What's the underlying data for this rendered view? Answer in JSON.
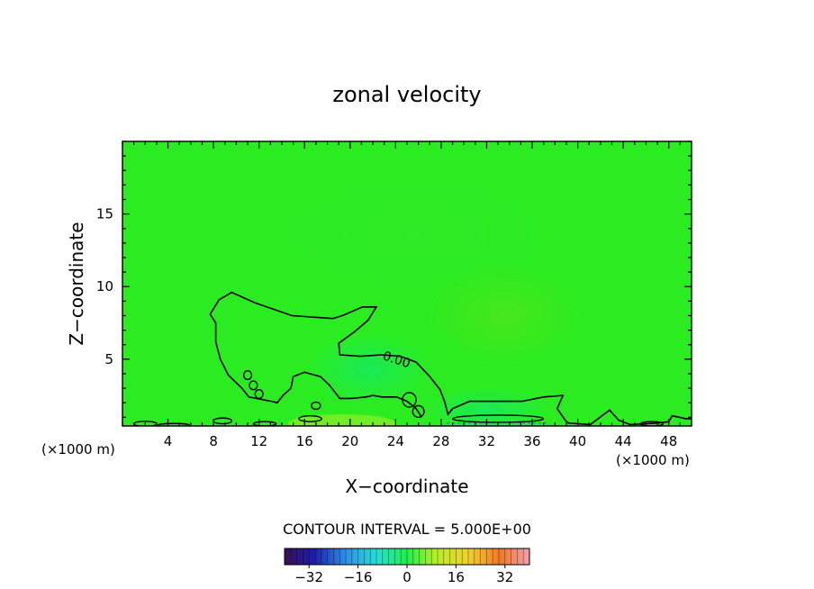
{
  "chart_data": {
    "type": "heatmap",
    "title": "zonal velocity",
    "xlabel": "X−coordinate",
    "ylabel": "Z−coordinate",
    "x_unit_left": "(×1000 m)",
    "x_unit_right": "(×1000 m)",
    "xlim": [
      0,
      50
    ],
    "ylim": [
      0.4,
      20
    ],
    "x_ticks": [
      4,
      8,
      12,
      16,
      20,
      24,
      28,
      32,
      36,
      40,
      44,
      48
    ],
    "y_ticks": [
      5,
      10,
      15
    ],
    "contour_interval_text": "CONTOUR INTERVAL = 5.000E+00",
    "contour_label": "0.00",
    "colorbar": {
      "range": [
        -40,
        40
      ],
      "ticks": [
        -32,
        -16,
        0,
        16,
        32
      ],
      "tick_labels": [
        "−32",
        "−16",
        "0",
        "16",
        "32"
      ]
    },
    "contour_zero": [
      [
        [
          7.7,
          8.1
        ],
        [
          8.5,
          9.1
        ],
        [
          9.6,
          9.6
        ],
        [
          11.6,
          8.9
        ],
        [
          14.9,
          8.0
        ],
        [
          18.5,
          7.8
        ],
        [
          19.3,
          8.0
        ],
        [
          21.1,
          8.6
        ],
        [
          22.3,
          8.6
        ],
        [
          21.6,
          7.7
        ],
        [
          20.4,
          6.9
        ],
        [
          19.0,
          6.1
        ],
        [
          19.1,
          5.3
        ],
        [
          20.9,
          5.2
        ],
        [
          22.8,
          5.3
        ],
        [
          24.4,
          5.2
        ],
        [
          25.8,
          4.8
        ],
        [
          27.0,
          3.8
        ],
        [
          27.9,
          2.9
        ],
        [
          28.3,
          2.1
        ],
        [
          28.6,
          1.2
        ],
        [
          29.0,
          1.6
        ],
        [
          30.5,
          2.1
        ],
        [
          33.0,
          2.1
        ],
        [
          35.1,
          2.1
        ],
        [
          37.0,
          2.4
        ],
        [
          38.7,
          2.5
        ],
        [
          38.2,
          1.6
        ],
        [
          38.9,
          0.8
        ],
        [
          39.2,
          0.6
        ],
        [
          41.1,
          0.5
        ],
        [
          42.8,
          1.5
        ],
        [
          43.6,
          0.8
        ],
        [
          44.6,
          0.5
        ],
        [
          47.0,
          0.6
        ],
        [
          48.0,
          0.7
        ],
        [
          48.3,
          1.1
        ],
        [
          49.5,
          0.9
        ],
        [
          50.0,
          0.9
        ]
      ],
      [
        [
          7.7,
          8.1
        ],
        [
          8.2,
          7.5
        ],
        [
          8.2,
          6.2
        ],
        [
          8.6,
          5.0
        ],
        [
          9.3,
          3.9
        ],
        [
          10.5,
          3.0
        ],
        [
          11.1,
          2.4
        ],
        [
          13.1,
          2.1
        ],
        [
          13.6,
          2.0
        ],
        [
          14.1,
          2.5
        ],
        [
          14.8,
          3.0
        ],
        [
          15.0,
          3.8
        ],
        [
          16.0,
          4.1
        ],
        [
          17.4,
          3.8
        ],
        [
          18.2,
          3.2
        ],
        [
          19.1,
          2.3
        ],
        [
          20.1,
          2.3
        ],
        [
          21.4,
          2.4
        ],
        [
          22.0,
          2.5
        ],
        [
          22.8,
          2.4
        ],
        [
          24.1,
          2.4
        ],
        [
          25.0,
          2.1
        ],
        [
          25.8,
          1.6
        ],
        [
          26.3,
          1.0
        ]
      ]
    ]
  }
}
